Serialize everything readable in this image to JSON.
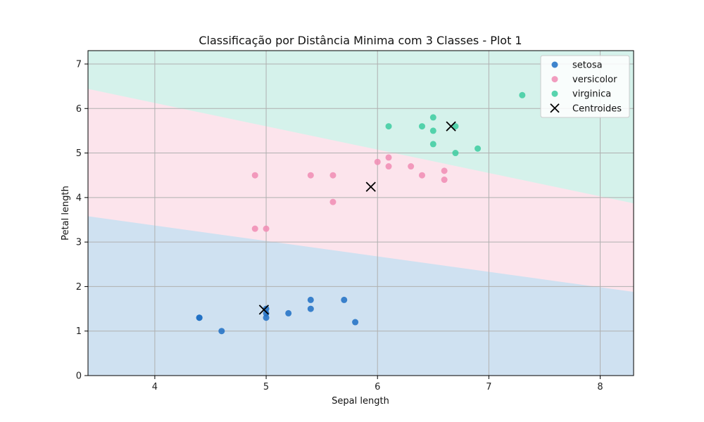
{
  "chart_data": {
    "type": "scatter",
    "title": "Classificação por Distância Minima com 3 Classes - Plot 1",
    "xlabel": "Sepal length",
    "ylabel": "Petal length",
    "xlim": [
      3.4,
      8.3
    ],
    "ylim": [
      0,
      7.3
    ],
    "xticks": [
      4,
      5,
      6,
      7,
      8
    ],
    "yticks": [
      0,
      1,
      2,
      3,
      4,
      5,
      6,
      7
    ],
    "grid": true,
    "legend_position": "top-right",
    "series": [
      {
        "name": "setosa",
        "color": "#1f6fc4",
        "points": [
          [
            4.4,
            1.3
          ],
          [
            4.4,
            1.3
          ],
          [
            4.6,
            1.0
          ],
          [
            5.0,
            1.3
          ],
          [
            5.0,
            1.4
          ],
          [
            5.0,
            1.5
          ],
          [
            5.2,
            1.4
          ],
          [
            5.4,
            1.5
          ],
          [
            5.4,
            1.7
          ],
          [
            5.7,
            1.7
          ],
          [
            5.8,
            1.2
          ]
        ]
      },
      {
        "name": "versicolor",
        "color": "#f08cb4",
        "points": [
          [
            4.9,
            4.5
          ],
          [
            4.9,
            3.3
          ],
          [
            5.0,
            3.3
          ],
          [
            5.4,
            4.5
          ],
          [
            5.6,
            4.5
          ],
          [
            5.6,
            3.9
          ],
          [
            6.0,
            4.8
          ],
          [
            6.1,
            4.9
          ],
          [
            6.1,
            4.7
          ],
          [
            6.3,
            4.7
          ],
          [
            6.4,
            4.5
          ],
          [
            6.6,
            4.6
          ],
          [
            6.6,
            4.4
          ]
        ]
      },
      {
        "name": "virginica",
        "color": "#3ccca0",
        "points": [
          [
            6.1,
            5.6
          ],
          [
            6.4,
            5.6
          ],
          [
            6.5,
            5.8
          ],
          [
            6.5,
            5.5
          ],
          [
            6.5,
            5.2
          ],
          [
            6.7,
            5.6
          ],
          [
            6.7,
            5.0
          ],
          [
            6.9,
            5.1
          ],
          [
            7.3,
            6.3
          ]
        ]
      },
      {
        "name": "Centroides",
        "color": "#000000",
        "marker": "x",
        "points": [
          [
            4.98,
            1.48
          ],
          [
            5.94,
            4.24
          ],
          [
            6.66,
            5.6
          ]
        ]
      }
    ],
    "regions": [
      {
        "class": "setosa",
        "color": "#cfe1f1"
      },
      {
        "class": "versicolor",
        "color": "#fce4ec"
      },
      {
        "class": "virginica",
        "color": "#d5f2eb"
      }
    ],
    "decision_boundaries": [
      {
        "between": [
          "setosa",
          "versicolor"
        ],
        "p1": [
          3.4,
          3.58
        ],
        "p2": [
          8.3,
          1.88
        ]
      },
      {
        "between": [
          "versicolor",
          "virginica"
        ],
        "p1": [
          3.4,
          6.44
        ],
        "p2": [
          8.3,
          3.87
        ]
      }
    ]
  }
}
